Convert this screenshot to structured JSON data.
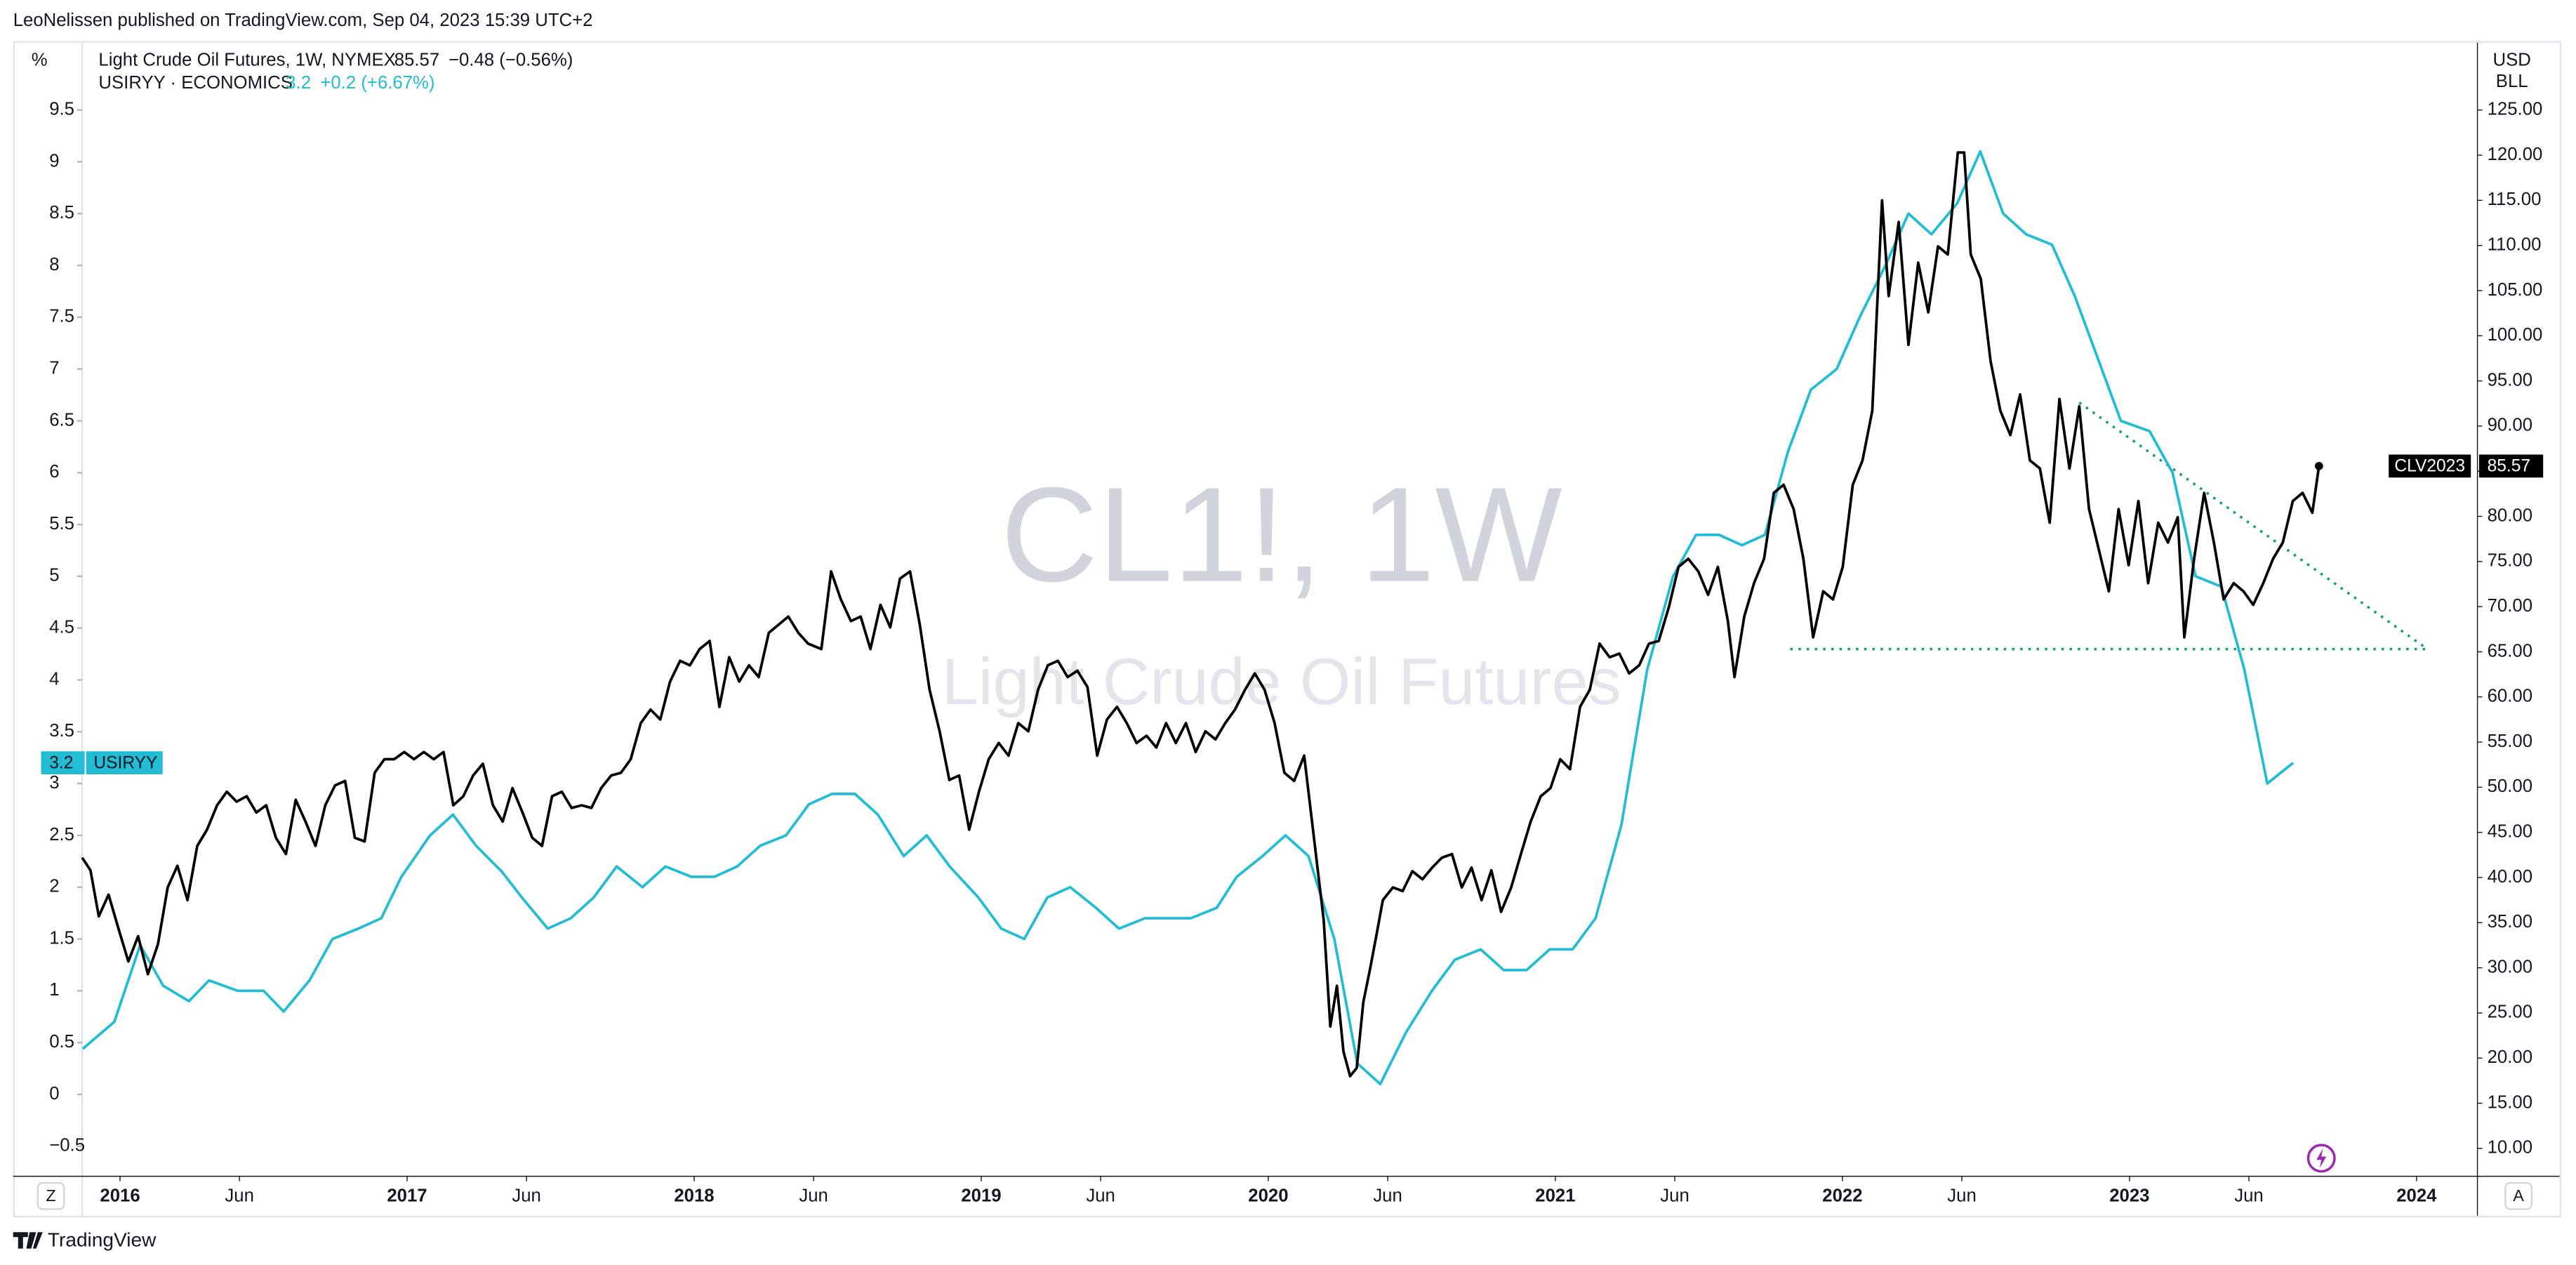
{
  "header": {
    "publisher": "LeoNelissen published on TradingView.com, Sep 04, 2023 15:39 UTC+2",
    "left_scale_unit": "%",
    "right_scale_unit": "USD",
    "right_scale_unit2": "BLL",
    "oil_change": "−0.48 (−0.56%)",
    "cpi_change": "+0.2 (+6.67%)",
    "oil_badge": "CLV2023",
    "cpi_badge": "USIRYY",
    "watermark": "CL1!, 1W",
    "watermark_sub": "Light Crude Oil Futures",
    "left_button": "Z",
    "right_button": "A",
    "footer": "TradingView"
  },
  "chart_data": {
    "type": "line",
    "grid": false,
    "xlim": [
      2015.868,
      2024.212
    ],
    "xticks": [
      {
        "value": 2016,
        "label": "2016"
      },
      {
        "value": 2016.416,
        "label": "Jun"
      },
      {
        "value": 2017,
        "label": "2017"
      },
      {
        "value": 2017.416,
        "label": "Jun"
      },
      {
        "value": 2018,
        "label": "2018"
      },
      {
        "value": 2018.416,
        "label": "Jun"
      },
      {
        "value": 2019,
        "label": "2019"
      },
      {
        "value": 2019.416,
        "label": "Jun"
      },
      {
        "value": 2020,
        "label": "2020"
      },
      {
        "value": 2020.416,
        "label": "Jun"
      },
      {
        "value": 2021,
        "label": "2021"
      },
      {
        "value": 2021.416,
        "label": "Jun"
      },
      {
        "value": 2022,
        "label": "2022"
      },
      {
        "value": 2022.416,
        "label": "Jun"
      },
      {
        "value": 2023,
        "label": "2023"
      },
      {
        "value": 2023.416,
        "label": "Jun"
      },
      {
        "value": 2024,
        "label": "2024"
      }
    ],
    "ylim": [
      -0.79,
      9.61
    ],
    "yticks": [
      {
        "value": -0.5,
        "label": "−0.5"
      },
      0,
      0.5,
      1,
      1.5,
      2,
      2.5,
      3,
      3.5,
      4,
      4.5,
      5,
      5.5,
      6,
      6.5,
      7,
      7.5,
      8,
      8.5,
      9,
      9.5
    ],
    "y2lim": [
      6.91,
      126.27
    ],
    "y2ticks": [
      {
        "value": 10,
        "label": "10.00"
      },
      {
        "value": 15,
        "label": "15.00"
      },
      {
        "value": 20,
        "label": "20.00"
      },
      {
        "value": 25,
        "label": "25.00"
      },
      {
        "value": 30,
        "label": "30.00"
      },
      {
        "value": 35,
        "label": "35.00"
      },
      {
        "value": 40,
        "label": "40.00"
      },
      {
        "value": 45,
        "label": "45.00"
      },
      {
        "value": 50,
        "label": "50.00"
      },
      {
        "value": 55,
        "label": "55.00"
      },
      {
        "value": 60,
        "label": "60.00"
      },
      {
        "value": 65,
        "label": "65.00"
      },
      {
        "value": 70,
        "label": "70.00"
      },
      {
        "value": 75,
        "label": "75.00"
      },
      {
        "value": 80,
        "label": "80.00"
      },
      {
        "value": 85,
        "label": "85.00"
      },
      {
        "value": 90,
        "label": "90.00"
      },
      {
        "value": 95,
        "label": "95.00"
      },
      {
        "value": 100,
        "label": "100.00"
      },
      {
        "value": 105,
        "label": "105.00"
      },
      {
        "value": 110,
        "label": "110.00"
      },
      {
        "value": 115,
        "label": "115.00"
      },
      {
        "value": 120,
        "label": "120.00"
      },
      {
        "value": 125,
        "label": "125.00"
      }
    ],
    "series": [
      {
        "name": "Light Crude Oil Futures, 1W, NYMEX",
        "color": "#000000",
        "axis": "y2",
        "x": [
          2015.868,
          2015.897,
          2015.926,
          2015.96,
          2015.994,
          2016.029,
          2016.063,
          2016.097,
          2016.132,
          2016.166,
          2016.2,
          2016.235,
          2016.269,
          2016.303,
          2016.338,
          2016.372,
          2016.406,
          2016.441,
          2016.475,
          2016.509,
          2016.543,
          2016.578,
          2016.612,
          2016.646,
          2016.681,
          2016.715,
          2016.749,
          2016.784,
          2016.818,
          2016.852,
          2016.887,
          2016.921,
          2016.955,
          2016.99,
          2017.024,
          2017.058,
          2017.093,
          2017.127,
          2017.161,
          2017.196,
          2017.23,
          2017.264,
          2017.299,
          2017.333,
          2017.367,
          2017.402,
          2017.436,
          2017.47,
          2017.505,
          2017.539,
          2017.573,
          2017.608,
          2017.642,
          2017.676,
          2017.711,
          2017.745,
          2017.779,
          2017.814,
          2017.848,
          2017.882,
          2017.916,
          2017.951,
          2017.985,
          2018.019,
          2018.054,
          2018.088,
          2018.122,
          2018.157,
          2018.191,
          2018.225,
          2018.26,
          2018.294,
          2018.328,
          2018.363,
          2018.397,
          2018.443,
          2018.477,
          2018.511,
          2018.546,
          2018.58,
          2018.614,
          2018.649,
          2018.683,
          2018.717,
          2018.752,
          2018.786,
          2018.82,
          2018.855,
          2018.889,
          2018.923,
          2018.958,
          2018.992,
          2019.026,
          2019.061,
          2019.095,
          2019.129,
          2019.164,
          2019.198,
          2019.232,
          2019.267,
          2019.301,
          2019.335,
          2019.37,
          2019.404,
          2019.438,
          2019.473,
          2019.507,
          2019.541,
          2019.576,
          2019.61,
          2019.644,
          2019.678,
          2019.713,
          2019.747,
          2019.781,
          2019.816,
          2019.85,
          2019.884,
          2019.919,
          2019.953,
          2019.987,
          2020.022,
          2020.056,
          2020.09,
          2020.125,
          2020.159,
          2020.193,
          2020.216,
          2020.239,
          2020.262,
          2020.285,
          2020.308,
          2020.331,
          2020.354,
          2020.376,
          2020.399,
          2020.434,
          2020.468,
          2020.502,
          2020.537,
          2020.571,
          2020.605,
          2020.64,
          2020.674,
          2020.708,
          2020.743,
          2020.777,
          2020.811,
          2020.846,
          2020.88,
          2020.914,
          2020.949,
          2020.983,
          2021.017,
          2021.051,
          2021.086,
          2021.12,
          2021.154,
          2021.189,
          2021.223,
          2021.257,
          2021.292,
          2021.326,
          2021.36,
          2021.395,
          2021.429,
          2021.463,
          2021.498,
          2021.532,
          2021.566,
          2021.601,
          2021.624,
          2021.658,
          2021.692,
          2021.727,
          2021.761,
          2021.795,
          2021.83,
          2021.864,
          2021.898,
          2021.933,
          2021.967,
          2022.001,
          2022.036,
          2022.07,
          2022.104,
          2022.138,
          2022.161,
          2022.196,
          2022.23,
          2022.264,
          2022.299,
          2022.333,
          2022.367,
          2022.402,
          2022.424,
          2022.447,
          2022.482,
          2022.516,
          2022.55,
          2022.585,
          2022.619,
          2022.653,
          2022.688,
          2022.722,
          2022.756,
          2022.791,
          2022.825,
          2022.859,
          2022.894,
          2022.928,
          2022.962,
          2022.997,
          2023.031,
          2023.065,
          2023.1,
          2023.134,
          2023.168,
          2023.191,
          2023.225,
          2023.26,
          2023.294,
          2023.328,
          2023.363,
          2023.397,
          2023.431,
          2023.466,
          2023.5,
          2023.534,
          2023.569,
          2023.603,
          2023.637,
          2023.66
        ],
        "values": [
          42.2,
          40.8,
          35.7,
          38.1,
          34.4,
          30.7,
          33.5,
          29.3,
          32.6,
          38.9,
          41.3,
          37.5,
          43.5,
          45.3,
          48.0,
          49.5,
          48.4,
          49.0,
          47.2,
          48.0,
          44.4,
          42.6,
          48.6,
          46.2,
          43.5,
          48.0,
          50.2,
          50.7,
          44.4,
          44.0,
          51.6,
          53.1,
          53.1,
          53.9,
          53.1,
          53.9,
          53.1,
          53.9,
          48.0,
          49.0,
          51.3,
          52.6,
          48.0,
          46.2,
          49.9,
          47.2,
          44.4,
          43.5,
          49.0,
          49.5,
          47.7,
          48.0,
          47.7,
          49.9,
          51.3,
          51.6,
          53.1,
          57.1,
          58.6,
          57.5,
          61.7,
          64.0,
          63.5,
          65.3,
          66.2,
          58.9,
          64.4,
          61.7,
          63.5,
          62.2,
          67.1,
          68.0,
          68.9,
          67.1,
          65.9,
          65.3,
          73.9,
          70.8,
          68.4,
          68.9,
          65.3,
          70.2,
          67.7,
          73.1,
          73.9,
          68.0,
          60.8,
          56.2,
          50.8,
          51.3,
          45.3,
          49.5,
          53.1,
          54.9,
          53.5,
          57.1,
          56.2,
          60.8,
          63.5,
          64.0,
          62.2,
          62.9,
          61.1,
          53.5,
          57.5,
          58.9,
          57.1,
          54.9,
          55.7,
          54.4,
          57.1,
          54.9,
          57.1,
          53.9,
          56.2,
          55.3,
          57.1,
          58.6,
          60.8,
          62.6,
          60.8,
          57.1,
          51.6,
          50.7,
          53.5,
          44.4,
          35.3,
          23.5,
          28.0,
          20.7,
          18.0,
          18.9,
          26.2,
          29.8,
          33.5,
          37.5,
          38.9,
          38.5,
          40.7,
          39.8,
          41.1,
          42.2,
          42.6,
          38.9,
          41.1,
          37.5,
          40.8,
          36.2,
          38.9,
          42.6,
          46.2,
          49.0,
          49.9,
          53.1,
          52.0,
          58.9,
          60.8,
          65.9,
          64.4,
          64.8,
          62.6,
          63.5,
          65.9,
          66.2,
          69.9,
          74.4,
          75.3,
          73.9,
          71.3,
          74.4,
          68.4,
          62.2,
          68.9,
          72.6,
          75.3,
          82.6,
          83.5,
          80.8,
          75.3,
          66.6,
          71.7,
          70.8,
          74.4,
          83.5,
          86.2,
          91.7,
          115.0,
          104.4,
          112.6,
          99.0,
          108.1,
          102.6,
          109.9,
          109.0,
          120.3,
          120.3,
          109.0,
          106.3,
          97.2,
          91.7,
          89.0,
          93.5,
          86.2,
          85.3,
          79.3,
          93.0,
          85.3,
          92.2,
          80.8,
          76.2,
          71.7,
          80.8,
          74.6,
          81.7,
          72.6,
          79.3,
          77.1,
          79.9,
          66.6,
          75.3,
          82.6,
          77.1,
          70.8,
          72.6,
          71.7,
          70.2,
          72.6,
          75.3,
          77.1,
          81.7,
          82.6,
          80.4,
          85.57
        ]
      },
      {
        "name": "USIRYY · ECONOMICS",
        "color": "#22bcd4",
        "axis": "y",
        "x": [
          2015.87,
          2015.98,
          2016.07,
          2016.15,
          2016.24,
          2016.31,
          2016.41,
          2016.5,
          2016.57,
          2016.66,
          2016.74,
          2016.83,
          2016.91,
          2016.98,
          2017.08,
          2017.16,
          2017.24,
          2017.33,
          2017.4,
          2017.49,
          2017.57,
          2017.65,
          2017.73,
          2017.82,
          2017.9,
          2017.99,
          2018.07,
          2018.15,
          2018.23,
          2018.32,
          2018.4,
          2018.48,
          2018.56,
          2018.64,
          2018.73,
          2018.81,
          2018.89,
          2018.99,
          2019.07,
          2019.15,
          2019.23,
          2019.31,
          2019.4,
          2019.48,
          2019.57,
          2019.64,
          2019.73,
          2019.82,
          2019.89,
          2019.98,
          2020.06,
          2020.14,
          2020.23,
          2020.31,
          2020.39,
          2020.48,
          2020.57,
          2020.65,
          2020.74,
          2020.82,
          2020.9,
          2020.98,
          2021.06,
          2021.14,
          2021.23,
          2021.32,
          2021.41,
          2021.49,
          2021.57,
          2021.65,
          2021.73,
          2021.81,
          2021.89,
          2021.98,
          2022.06,
          2022.15,
          2022.23,
          2022.31,
          2022.4,
          2022.48,
          2022.56,
          2022.64,
          2022.73,
          2022.81,
          2022.89,
          2022.97,
          2023.07,
          2023.15,
          2023.23,
          2023.32,
          2023.4,
          2023.48,
          2023.57
        ],
        "values": [
          0.44,
          0.7,
          1.44,
          1.05,
          0.9,
          1.1,
          1.0,
          1.0,
          0.8,
          1.1,
          1.5,
          1.6,
          1.7,
          2.1,
          2.5,
          2.7,
          2.4,
          2.15,
          1.9,
          1.6,
          1.7,
          1.9,
          2.2,
          2.0,
          2.2,
          2.1,
          2.1,
          2.2,
          2.4,
          2.5,
          2.8,
          2.9,
          2.9,
          2.7,
          2.3,
          2.5,
          2.2,
          1.9,
          1.6,
          1.5,
          1.9,
          2.0,
          1.8,
          1.6,
          1.7,
          1.7,
          1.7,
          1.8,
          2.1,
          2.3,
          2.5,
          2.3,
          1.5,
          0.3,
          0.1,
          0.6,
          1.0,
          1.3,
          1.4,
          1.2,
          1.2,
          1.4,
          1.4,
          1.7,
          2.6,
          4.1,
          5.0,
          5.4,
          5.4,
          5.3,
          5.4,
          6.2,
          6.8,
          7.0,
          7.5,
          8.0,
          8.5,
          8.3,
          8.6,
          9.1,
          8.5,
          8.3,
          8.2,
          7.7,
          7.1,
          6.5,
          6.4,
          6.0,
          5.0,
          4.9,
          4.1,
          3.0,
          3.2
        ]
      }
    ],
    "trendlines": [
      {
        "color": "#0f9d7a",
        "axis": "y2",
        "x": [
          2022.825,
          2024.038
        ],
        "values": [
          92.6,
          65.3
        ]
      },
      {
        "color": "#0f9d7a",
        "axis": "y2",
        "x": [
          2021.818,
          2024.038
        ],
        "values": [
          65.3,
          65.3
        ]
      }
    ]
  }
}
